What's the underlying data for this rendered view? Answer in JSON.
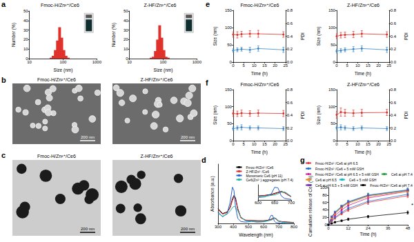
{
  "chart_data": [
    {
      "panel": "a",
      "type": "bar",
      "title": "Fmoc-H/Zn²⁺/Ce6",
      "x_label": "Size (nm)",
      "y_label": "Number (%)",
      "log": "x",
      "x": [
        43.8,
        50.7,
        58.8,
        68.1,
        78.8,
        91.3,
        105.7,
        122.4,
        141.8
      ],
      "values": [
        1,
        3,
        9,
        19,
        33,
        22,
        9,
        3,
        1
      ],
      "color": "#e0312a",
      "xlim": [
        10,
        1000
      ],
      "xticks": [
        10,
        100,
        1000
      ],
      "ylim": [
        0,
        50
      ],
      "yticks": [
        0,
        10,
        20,
        30,
        40,
        50
      ]
    },
    {
      "type": "bar",
      "title": "Z-HF/Zn²⁺/Ce6",
      "x_label": "Size (nm)",
      "y_label": "Number (%)",
      "log": "x",
      "x": [
        43.8,
        50.7,
        58.8,
        68.1,
        78.8,
        91.3,
        105.7,
        122.4,
        141.8
      ],
      "values": [
        1,
        2,
        8,
        20,
        35,
        22,
        9,
        2,
        1
      ],
      "color": "#e0312a",
      "xlim": [
        10,
        1000
      ],
      "xticks": [
        10,
        100,
        1000
      ],
      "ylim": [
        0,
        50
      ],
      "yticks": [
        0,
        10,
        20,
        30,
        40,
        50
      ]
    },
    {
      "panel": "e",
      "type": "line",
      "title": "Fmoc-H/Zn²⁺/Ce6",
      "x_label": "Time (h)",
      "y_label": "Size (nm)",
      "y2_label": "PDI",
      "x": [
        0,
        2,
        4,
        8,
        12,
        24
      ],
      "series": [
        {
          "color": "#e0312a",
          "marker": "circle",
          "values": [
            80,
            79,
            81,
            82,
            82,
            80
          ],
          "errors": [
            8,
            9,
            8,
            9,
            10,
            8
          ]
        },
        {
          "axis": "y2",
          "color": "#3a86c8",
          "marker": "circle",
          "values": [
            0.18,
            0.19,
            0.2,
            0.19,
            0.21,
            0.19
          ],
          "errors": [
            0.03,
            0.03,
            0.03,
            0.04,
            0.04,
            0.04
          ]
        }
      ],
      "xlim": [
        0,
        25
      ],
      "xticks": [
        0,
        5,
        10,
        15,
        20,
        25
      ],
      "ylim": [
        0,
        150
      ],
      "yticks": [
        0,
        50,
        100,
        150
      ],
      "y2lim": [
        0,
        0.8
      ],
      "y2ticks": [
        {
          "value": 0,
          "label": "0.0"
        },
        0.2,
        0.4,
        0.6,
        0.8
      ]
    },
    {
      "type": "line",
      "title": "Z-HF/Zn²⁺/Ce6",
      "x_label": "Time (h)",
      "y_label": "Size (nm)",
      "y2_label": "PDI",
      "x": [
        0,
        2,
        4,
        8,
        12,
        24
      ],
      "series": [
        {
          "color": "#e0312a",
          "marker": "circle",
          "values": [
            75,
            78,
            79,
            80,
            82,
            80
          ],
          "errors": [
            7,
            8,
            8,
            9,
            9,
            8
          ]
        },
        {
          "axis": "y2",
          "color": "#3a86c8",
          "marker": "circle",
          "values": [
            0.17,
            0.18,
            0.19,
            0.2,
            0.21,
            0.19
          ],
          "errors": [
            0.03,
            0.03,
            0.03,
            0.04,
            0.04,
            0.04
          ]
        }
      ],
      "xlim": [
        0,
        25
      ],
      "xticks": [
        0,
        5,
        10,
        15,
        20,
        25
      ],
      "ylim": [
        0,
        150
      ],
      "yticks": [
        0,
        50,
        100,
        150
      ],
      "y2lim": [
        0,
        0.8
      ],
      "y2ticks": [
        {
          "value": 0,
          "label": "0.0"
        },
        0.2,
        0.4,
        0.6,
        0.8
      ]
    },
    {
      "panel": "f",
      "type": "line",
      "title": "Fmoc-H/Zn²⁺/Ce6",
      "x_label": "Time (h)",
      "y_label": "Size (nm)",
      "y2_label": "PDI",
      "x": [
        0,
        2,
        4,
        8,
        12,
        24
      ],
      "series": [
        {
          "color": "#e0312a",
          "marker": "circle",
          "values": [
            80,
            79,
            81,
            80,
            81,
            80
          ],
          "errors": [
            9,
            8,
            9,
            8,
            9,
            9
          ]
        },
        {
          "axis": "y2",
          "color": "#3a86c8",
          "marker": "circle",
          "values": [
            0.19,
            0.2,
            0.21,
            0.2,
            0.2,
            0.19
          ],
          "errors": [
            0.03,
            0.03,
            0.04,
            0.03,
            0.03,
            0.03
          ]
        }
      ],
      "xlim": [
        0,
        25
      ],
      "xticks": [
        0,
        5,
        10,
        15,
        20,
        25
      ],
      "ylim": [
        0,
        150
      ],
      "yticks": [
        0,
        50,
        100,
        150
      ],
      "y2lim": [
        0,
        0.8
      ],
      "y2ticks": [
        {
          "value": 0,
          "label": "0.0"
        },
        0.2,
        0.4,
        0.6,
        0.8
      ]
    },
    {
      "type": "line",
      "title": "Z-HF/Zn²⁺/Ce6",
      "x_label": "Time (h)",
      "y_label": "Size (nm)",
      "y2_label": "PDI",
      "x": [
        0,
        2,
        4,
        8,
        12,
        24
      ],
      "series": [
        {
          "color": "#e0312a",
          "marker": "circle",
          "values": [
            76,
            84,
            82,
            81,
            82,
            83
          ],
          "errors": [
            10,
            12,
            10,
            9,
            10,
            9
          ]
        },
        {
          "axis": "y2",
          "color": "#3a86c8",
          "marker": "circle",
          "values": [
            0.2,
            0.21,
            0.2,
            0.19,
            0.2,
            0.19
          ],
          "errors": [
            0.03,
            0.04,
            0.03,
            0.03,
            0.03,
            0.03
          ]
        }
      ],
      "xlim": [
        0,
        25
      ],
      "xticks": [
        0,
        5,
        10,
        15,
        20,
        25
      ],
      "ylim": [
        0,
        150
      ],
      "yticks": [
        0,
        50,
        100,
        150
      ],
      "y2lim": [
        0,
        0.8
      ],
      "y2ticks": [
        {
          "value": 0,
          "label": "0.0"
        },
        0.2,
        0.4,
        0.6,
        0.8
      ]
    },
    {
      "panel": "d",
      "type": "line",
      "x_label": "Wavelength (nm)",
      "y_label": "Absorbance (a.u.)",
      "tick_labels": "x",
      "legend": "top-right",
      "x": [
        300,
        330,
        360,
        380,
        395,
        405,
        415,
        430,
        450,
        480,
        520,
        560,
        600,
        630,
        650,
        660,
        670,
        680,
        690,
        700,
        730,
        760,
        800
      ],
      "series": [
        {
          "name": "Fmoc-H/Zn²⁺/Ce6",
          "color": "#000000",
          "values": [
            0.45,
            0.3,
            0.35,
            0.5,
            0.75,
            0.85,
            0.78,
            0.45,
            0.18,
            0.1,
            0.09,
            0.08,
            0.08,
            0.1,
            0.13,
            0.15,
            0.17,
            0.15,
            0.1,
            0.07,
            0.05,
            0.04,
            0.03
          ]
        },
        {
          "name": "Z-HF/Zn²⁺/Ce6",
          "color": "#e0312a",
          "values": [
            0.42,
            0.28,
            0.33,
            0.47,
            0.7,
            0.8,
            0.74,
            0.42,
            0.17,
            0.1,
            0.09,
            0.08,
            0.08,
            0.09,
            0.12,
            0.14,
            0.16,
            0.14,
            0.1,
            0.06,
            0.05,
            0.04,
            0.03
          ]
        },
        {
          "name": "Monomeric Ce6 (pH 11)",
          "color": "#2a5fd0",
          "values": [
            0.35,
            0.2,
            0.3,
            0.65,
            1.1,
            1.0,
            0.5,
            0.15,
            0.06,
            0.04,
            0.06,
            0.04,
            0.05,
            0.08,
            0.25,
            0.24,
            0.08,
            0.03,
            0.02,
            0.01,
            0.01,
            0,
            0
          ]
        },
        {
          "name": "Ce6(Zn²⁺) aggregates (pH 7.4)",
          "color": "#1fb5a8",
          "values": [
            0.3,
            0.22,
            0.28,
            0.38,
            0.48,
            0.52,
            0.5,
            0.38,
            0.2,
            0.08,
            0.07,
            0.05,
            0.06,
            0.08,
            0.1,
            0.12,
            0.15,
            0.16,
            0.12,
            0.07,
            0.03,
            0.02,
            0.01
          ]
        }
      ],
      "xlim": [
        300,
        800
      ],
      "xticks": [
        300,
        400,
        500,
        600,
        700,
        800
      ],
      "ylim": [
        0,
        1.8
      ]
    },
    {
      "type": "line",
      "tick_labels": "x",
      "x": [
        600,
        620,
        640,
        650,
        660,
        670,
        680,
        690,
        700
      ],
      "series": [
        {
          "color": "#000000",
          "values": [
            0.08,
            0.09,
            0.11,
            0.13,
            0.15,
            0.17,
            0.15,
            0.1,
            0.07
          ]
        },
        {
          "color": "#e0312a",
          "values": [
            0.08,
            0.085,
            0.1,
            0.12,
            0.14,
            0.16,
            0.14,
            0.1,
            0.06
          ]
        },
        {
          "color": "#2a5fd0",
          "values": [
            0.05,
            0.06,
            0.12,
            0.25,
            0.24,
            0.08,
            0.03,
            0.02,
            0.01
          ]
        },
        {
          "color": "#1fb5a8",
          "values": [
            0.06,
            0.07,
            0.09,
            0.1,
            0.12,
            0.15,
            0.16,
            0.12,
            0.07
          ]
        }
      ],
      "xlim": [
        600,
        700
      ],
      "xticks": [
        600,
        650,
        700
      ],
      "ylim": [
        0,
        0.3
      ]
    },
    {
      "panel": "g",
      "type": "line",
      "x_label": "Time (h)",
      "y_label": "Cumulative release of Ce6 (%)",
      "legend": "top",
      "annotations": [
        "*"
      ],
      "x": [
        0,
        2,
        4,
        8,
        12,
        24,
        48
      ],
      "series": [
        {
          "name": "Fmoc-H/Zn²⁺/Ce6 at pH 6.5",
          "color": "#e53935",
          "marker": "circle",
          "values": [
            0,
            10,
            18,
            30,
            40,
            60,
            78
          ],
          "errors": [
            0,
            2,
            3,
            3,
            4,
            5,
            5
          ]
        },
        {
          "name": "Fmoc-H/Zn²⁺/Ce6 + 5 mM GSH",
          "color": "#1f6fd1",
          "marker": "circle",
          "values": [
            0,
            12,
            20,
            33,
            44,
            63,
            82
          ],
          "errors": [
            0,
            2,
            3,
            3,
            4,
            5,
            5
          ]
        },
        {
          "name": "Fmoc-H/Zn²⁺/Ce6 at pH 6.5 + 5 mM GSH",
          "color": "#d81b9c",
          "marker": "circle",
          "values": [
            0,
            15,
            25,
            40,
            52,
            72,
            90
          ],
          "errors": [
            0,
            2,
            3,
            3,
            4,
            5,
            5
          ]
        },
        {
          "name": "Ce6 at pH 7.4",
          "color": "#2e9e44",
          "marker": "square",
          "values": [
            0,
            20,
            32,
            48,
            60,
            78,
            92
          ],
          "errors": [
            0,
            2,
            3,
            3,
            4,
            5,
            5
          ]
        },
        {
          "name": "Ce6 at pH 6.5",
          "color": "#f08c1a",
          "marker": "square",
          "values": [
            0,
            18,
            30,
            46,
            58,
            76,
            90
          ],
          "errors": [
            0,
            2,
            3,
            3,
            4,
            5,
            5
          ]
        },
        {
          "name": "Ce6 + 5 mM GSH",
          "color": "#17b3c9",
          "marker": "square",
          "values": [
            0,
            22,
            34,
            50,
            62,
            80,
            94
          ],
          "errors": [
            0,
            2,
            3,
            3,
            4,
            5,
            5
          ]
        },
        {
          "name": "Ce6 at pH 6.5 + 5 mM GSH",
          "color": "#7b3fb0",
          "marker": "square",
          "values": [
            0,
            21,
            33,
            49,
            61,
            79,
            93
          ],
          "errors": [
            0,
            2,
            3,
            3,
            4,
            5,
            5
          ]
        },
        {
          "name": "Fmoc-H/Zn²⁺/Ce6 at pH 7.4",
          "color": "#000000",
          "marker": "circle",
          "values": [
            0,
            4,
            7,
            11,
            15,
            22,
            33
          ],
          "errors": [
            0,
            1,
            2,
            2,
            3,
            3,
            4
          ]
        }
      ],
      "xlim": [
        0,
        48
      ],
      "xticks": [
        0,
        12,
        24,
        36,
        48
      ],
      "ylim": [
        0,
        100
      ],
      "yticks": [
        0,
        20,
        40,
        60,
        80,
        100
      ]
    }
  ],
  "images": [
    {
      "panel": "b",
      "title": "Fmoc-H/Zn²⁺/Ce6",
      "scale_bar": "200 nm"
    },
    {
      "title": "Z-HF/Zn²⁺/Ce6",
      "scale_bar": "200 nm"
    },
    {
      "panel": "c",
      "title": "Fmoc-H/Zn²⁺/Ce6",
      "scale_bar": "200 nm"
    },
    {
      "title": "Z-HF/Zn²⁺/Ce6",
      "scale_bar": "200 nm"
    }
  ]
}
